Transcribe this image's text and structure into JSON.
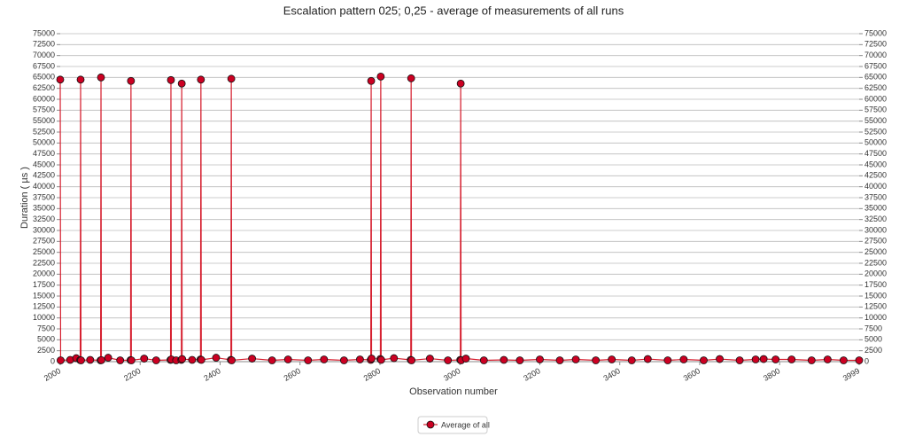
{
  "chart_data": {
    "type": "line",
    "title": "Escalation pattern 025; 0,25 - average of measurements of all runs",
    "x_label": "Observation number",
    "y_label": "Duration ( µs )",
    "x": [
      2000,
      2001,
      2025,
      2040,
      2050,
      2051,
      2052,
      2075,
      2101,
      2102,
      2103,
      2120,
      2150,
      2176,
      2177,
      2178,
      2210,
      2240,
      2276,
      2277,
      2278,
      2290,
      2303,
      2304,
      2305,
      2330,
      2351,
      2352,
      2353,
      2390,
      2427,
      2428,
      2429,
      2480,
      2530,
      2570,
      2620,
      2660,
      2710,
      2750,
      2777,
      2778,
      2779,
      2801,
      2802,
      2803,
      2835,
      2877,
      2878,
      2879,
      2925,
      2970,
      3001,
      3002,
      3003,
      3015,
      3060,
      3110,
      3150,
      3200,
      3250,
      3290,
      3340,
      3380,
      3430,
      3470,
      3520,
      3560,
      3610,
      3650,
      3700,
      3740,
      3760,
      3790,
      3830,
      3880,
      3920,
      3960,
      3999
    ],
    "series": [
      {
        "name": "Average of all",
        "color": "#d62030",
        "values": [
          64500,
          300,
          400,
          800,
          350,
          64500,
          300,
          400,
          300,
          65000,
          350,
          900,
          300,
          350,
          64200,
          300,
          700,
          300,
          400,
          64400,
          500,
          300,
          400,
          63600,
          600,
          400,
          500,
          64500,
          400,
          900,
          400,
          64700,
          300,
          700,
          300,
          500,
          300,
          500,
          300,
          500,
          400,
          64200,
          700,
          600,
          65200,
          400,
          800,
          400,
          64800,
          300,
          700,
          300,
          400,
          63600,
          300,
          700,
          300,
          400,
          300,
          500,
          300,
          500,
          300,
          500,
          300,
          600,
          300,
          500,
          300,
          600,
          300,
          500,
          600,
          500,
          500,
          300,
          500,
          300,
          300
        ]
      }
    ],
    "xlim": [
      2000,
      3999
    ],
    "xticks": [
      2000,
      2200,
      2400,
      2600,
      2800,
      3000,
      3200,
      3400,
      3600,
      3800,
      3999
    ],
    "ylim": [
      0,
      75000
    ],
    "yticks": [
      0,
      2500,
      5000,
      7500,
      10000,
      12500,
      15000,
      17500,
      20000,
      22500,
      25000,
      27500,
      30000,
      32500,
      35000,
      37500,
      40000,
      42500,
      45000,
      47500,
      50000,
      52500,
      55000,
      57500,
      60000,
      62500,
      65000,
      67500,
      70000,
      72500,
      75000
    ],
    "y2lim": [
      0,
      75000
    ],
    "y2ticks": [
      0,
      2500,
      5000,
      7500,
      10000,
      12500,
      15000,
      17500,
      20000,
      22500,
      25000,
      27500,
      30000,
      32500,
      35000,
      37500,
      40000,
      42500,
      45000,
      47500,
      50000,
      52500,
      55000,
      57500,
      60000,
      62500,
      65000,
      67500,
      70000,
      72500,
      75000
    ],
    "grid": true,
    "marker_color": "#cc0022",
    "legend": "bottom"
  }
}
